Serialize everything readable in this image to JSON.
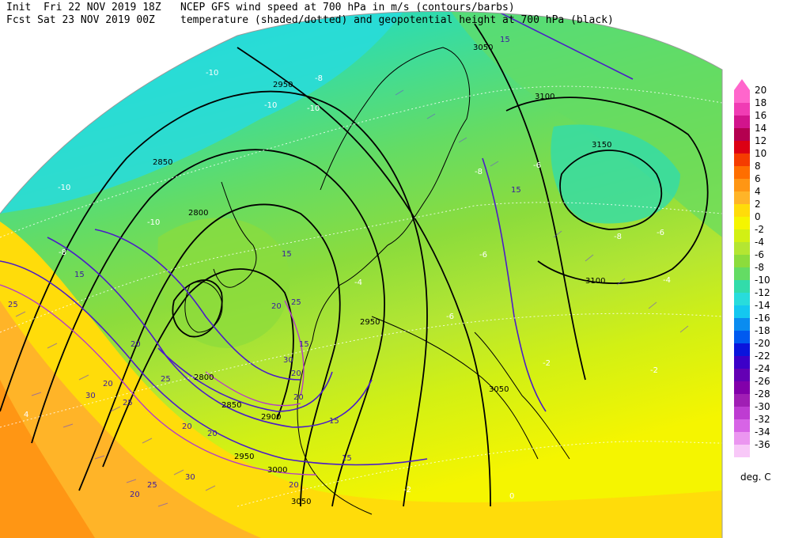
{
  "header": {
    "init_label": "Init",
    "init_time": "Fri 22 NOV 2019 18Z",
    "fcst_label": "Fcst",
    "fcst_time": "Sat 23 NOV 2019 00Z",
    "line1": "NCEP GFS wind speed at 700 hPa in m/s (contours/barbs)",
    "line2": "temperature (shaded/dotted) and geopotential height at 700 hPa (black)"
  },
  "legend": {
    "units": "deg. C",
    "levels": [
      {
        "value": "20",
        "color": "#ff66cc"
      },
      {
        "value": "18",
        "color": "#f03cb4"
      },
      {
        "value": "16",
        "color": "#d2148c"
      },
      {
        "value": "14",
        "color": "#b40050"
      },
      {
        "value": "12",
        "color": "#dc0014"
      },
      {
        "value": "10",
        "color": "#f53c00"
      },
      {
        "value": "8",
        "color": "#ff6e00"
      },
      {
        "value": "6",
        "color": "#ff9614"
      },
      {
        "value": "4",
        "color": "#ffb428"
      },
      {
        "value": "2",
        "color": "#ffdc0a"
      },
      {
        "value": "0",
        "color": "#f5f500"
      },
      {
        "value": "-2",
        "color": "#d2f014"
      },
      {
        "value": "-4",
        "color": "#b4e632"
      },
      {
        "value": "-6",
        "color": "#8cdc3c"
      },
      {
        "value": "-8",
        "color": "#64dc64"
      },
      {
        "value": "-10",
        "color": "#32dcaa"
      },
      {
        "value": "-12",
        "color": "#28dcdc"
      },
      {
        "value": "-14",
        "color": "#14c8f0"
      },
      {
        "value": "-16",
        "color": "#0a8cf0"
      },
      {
        "value": "-18",
        "color": "#005af0"
      },
      {
        "value": "-20",
        "color": "#0a14dc"
      },
      {
        "value": "-22",
        "color": "#3c00c8"
      },
      {
        "value": "-24",
        "color": "#6400b4"
      },
      {
        "value": "-26",
        "color": "#8200aa"
      },
      {
        "value": "-28",
        "color": "#a01eb4"
      },
      {
        "value": "-30",
        "color": "#be3cd2"
      },
      {
        "value": "-32",
        "color": "#d764e6"
      },
      {
        "value": "-34",
        "color": "#eb96f0"
      },
      {
        "value": "-36",
        "color": "#f8c8f8"
      }
    ]
  },
  "map": {
    "height_labels": [
      "3050",
      "2950",
      "3100",
      "2850",
      "3150",
      "2800",
      "2950",
      "3100",
      "2800",
      "2850",
      "2900",
      "3050",
      "2950",
      "3000",
      "3050"
    ],
    "wind_labels": [
      "15",
      "15",
      "20",
      "25",
      "20",
      "15",
      "20",
      "25",
      "30",
      "20",
      "15",
      "20",
      "25",
      "30",
      "20",
      "25",
      "20",
      "30",
      "25",
      "15",
      "15",
      "20",
      "15",
      "20"
    ],
    "temp_labels": [
      "-10",
      "-8",
      "-10",
      "-10",
      "-10",
      "-10",
      "-8",
      "-8",
      "-6",
      "-6",
      "-6",
      "-4",
      "-2",
      "0",
      "-2",
      "4",
      "-2",
      "-6",
      "-8",
      "-4"
    ]
  }
}
